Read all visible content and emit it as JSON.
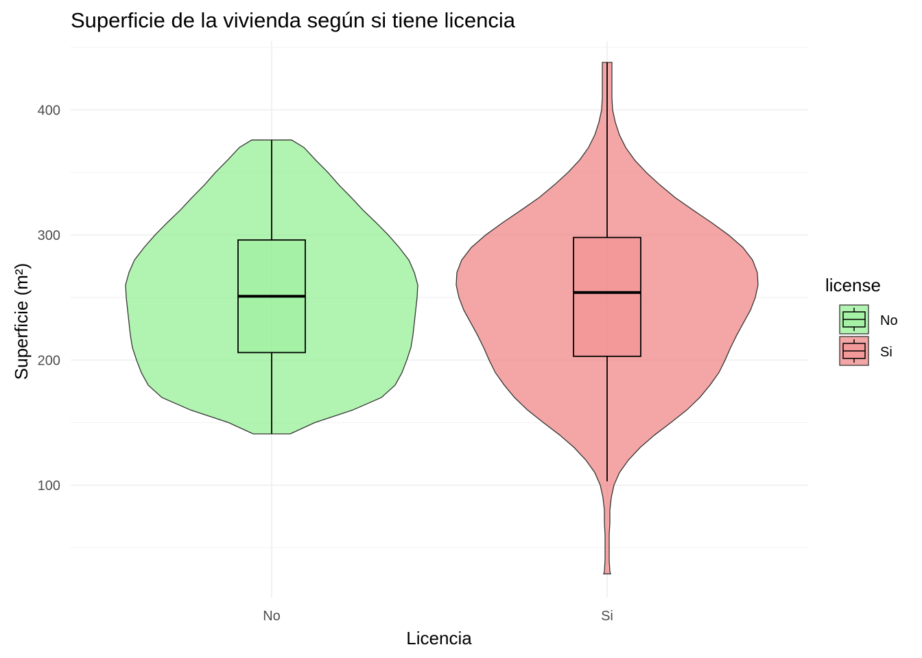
{
  "chart_data": {
    "type": "violin",
    "title": "Superficie de la vivienda según si tiene licencia",
    "xlabel": "Licencia",
    "ylabel": "Superficie (m²)",
    "ylim": [
      10,
      455
    ],
    "y_ticks": [
      100,
      200,
      300,
      400
    ],
    "grid": true,
    "legend": {
      "title": "license",
      "position": "right",
      "entries": [
        "No",
        "Si"
      ]
    },
    "categories": [
      "No",
      "Si"
    ],
    "series": [
      {
        "name": "No",
        "color": "#90EE90",
        "box": {
          "lower_whisker": 141,
          "q1": 206,
          "median": 251,
          "q3": 296,
          "upper_whisker": 376
        },
        "violin": {
          "y": [
            141,
            150,
            160,
            170,
            180,
            190,
            200,
            210,
            220,
            230,
            240,
            250,
            260,
            270,
            280,
            290,
            300,
            310,
            320,
            330,
            340,
            350,
            360,
            370,
            376
          ],
          "half_width": [
            27,
            63,
            118,
            160,
            180,
            190,
            197,
            203,
            206,
            208,
            210,
            212,
            213,
            208,
            200,
            186,
            170,
            152,
            133,
            116,
            98,
            82,
            64,
            47,
            29
          ]
        }
      },
      {
        "name": "Si",
        "color": "#F08080",
        "box": {
          "lower_whisker": 103,
          "q1": 203,
          "median": 254,
          "q3": 298,
          "upper_whisker": 438
        },
        "violin": {
          "y": [
            29,
            31,
            40,
            50,
            60,
            70,
            80,
            90,
            100,
            110,
            120,
            130,
            140,
            150,
            160,
            170,
            180,
            190,
            200,
            210,
            220,
            230,
            240,
            250,
            260,
            270,
            280,
            290,
            300,
            310,
            320,
            330,
            340,
            350,
            360,
            370,
            380,
            390,
            400,
            410,
            420,
            430,
            438
          ],
          "half_width": [
            5,
            4,
            3,
            3,
            3,
            4,
            4,
            6,
            10,
            18,
            31,
            48,
            69,
            93,
            116,
            135,
            150,
            163,
            172,
            180,
            189,
            199,
            209,
            216,
            220,
            219,
            212,
            198,
            177,
            152,
            125,
            99,
            77,
            57,
            40,
            27,
            18,
            12,
            8,
            7,
            7,
            7,
            7
          ]
        }
      }
    ]
  }
}
